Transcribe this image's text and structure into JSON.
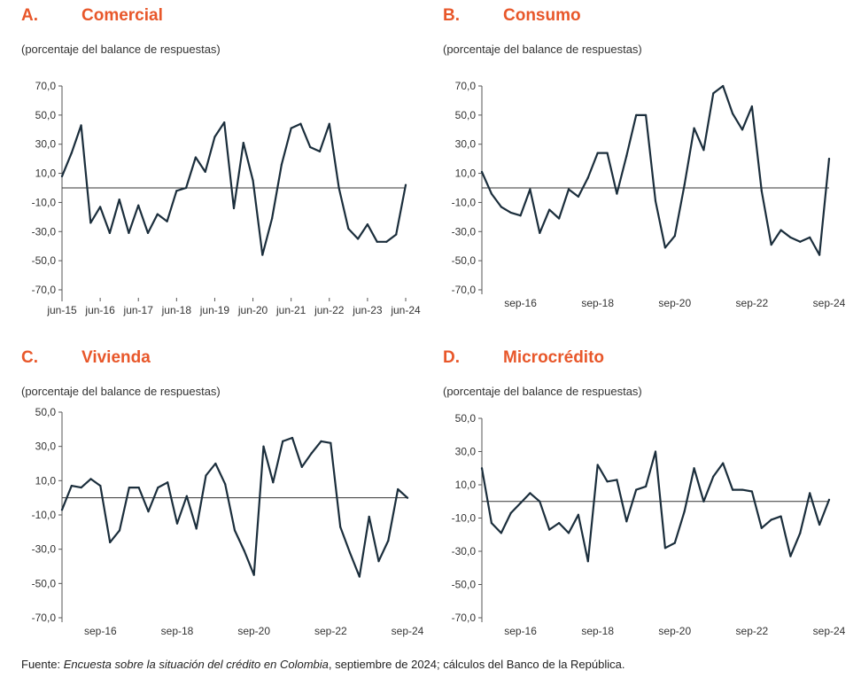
{
  "colors": {
    "title": "#e8572a",
    "line": "#1b2e3c",
    "axis": "#555555"
  },
  "source": {
    "prefix": "Fuente: ",
    "italic": "Encuesta sobre la situación del crédito en Colombia",
    "suffix": ", septiembre de 2024; cálculos del Banco de la República."
  },
  "chart_data": [
    {
      "id": "A",
      "letter": "A.",
      "title": "Comercial",
      "subtitle": "(porcentaje del balance de respuestas)",
      "type": "line",
      "ylim": [
        -70,
        70
      ],
      "yticks": [
        70,
        50,
        30,
        10,
        -10,
        -30,
        -50,
        -70
      ],
      "ytick_labels": [
        "70,0",
        "50,0",
        "30,0",
        "10,0",
        "-10,0",
        "-30,0",
        "-50,0",
        "-70,0"
      ],
      "xtick_labels": [
        "jun-15",
        "jun-16",
        "jun-17",
        "jun-18",
        "jun-19",
        "jun-20",
        "jun-21",
        "jun-22",
        "jun-23",
        "jun-24"
      ],
      "xtick_positions": [
        0,
        4,
        8,
        12,
        16,
        20,
        24,
        28,
        32,
        36
      ],
      "values": [
        8,
        24,
        43,
        -24,
        -13,
        -31,
        -8,
        -31,
        -12,
        -31,
        -18,
        -23,
        -2,
        0,
        21,
        11,
        35,
        45,
        -14,
        31,
        5,
        -46,
        -21,
        16,
        41,
        44,
        28,
        25,
        44,
        0,
        -28,
        -35,
        -25,
        -37,
        -37,
        -32,
        2
      ]
    },
    {
      "id": "B",
      "letter": "B.",
      "title": "Consumo",
      "subtitle": "(porcentaje del balance de respuestas)",
      "type": "line",
      "ylim": [
        -70,
        70
      ],
      "yticks": [
        70,
        50,
        30,
        10,
        -10,
        -30,
        -50,
        -70
      ],
      "ytick_labels": [
        "70,0",
        "50,0",
        "30,0",
        "10,0",
        "-10,0",
        "-30,0",
        "-50,0",
        "-70,0"
      ],
      "xtick_labels": [
        "sep-16",
        "sep-18",
        "sep-20",
        "sep-22",
        "sep-24"
      ],
      "xtick_positions": [
        4,
        12,
        20,
        28,
        36
      ],
      "values": [
        11,
        -4,
        -13,
        -17,
        -19,
        -1,
        -31,
        -15,
        -21,
        -1,
        -6,
        7,
        24,
        24,
        -4,
        22,
        50,
        50,
        -9,
        -41,
        -33,
        2,
        41,
        26,
        65,
        70,
        51,
        40,
        56,
        -2,
        -39,
        -29,
        -34,
        -37,
        -34,
        -46,
        20
      ]
    },
    {
      "id": "C",
      "letter": "C.",
      "title": "Vivienda",
      "subtitle": "(porcentaje del balance de respuestas)",
      "type": "line",
      "ylim": [
        -70,
        50
      ],
      "yticks": [
        50,
        30,
        10,
        -10,
        -30,
        -50,
        -70
      ],
      "ytick_labels": [
        "50,0",
        "30,0",
        "10,0",
        "-10,0",
        "-30,0",
        "-50,0",
        "-70,0"
      ],
      "xtick_labels": [
        "sep-16",
        "sep-18",
        "sep-20",
        "sep-22",
        "sep-24"
      ],
      "xtick_positions": [
        4,
        12,
        20,
        28,
        36
      ],
      "values": [
        -7,
        7,
        6,
        11,
        7,
        -26,
        -19,
        6,
        6,
        -8,
        6,
        9,
        -15,
        1,
        -18,
        13,
        20,
        8,
        -19,
        -31,
        -45,
        30,
        9,
        33,
        35,
        18,
        26,
        33,
        32,
        -17,
        -32,
        -46,
        -11,
        -37,
        -25,
        5,
        0
      ]
    },
    {
      "id": "D",
      "letter": "D.",
      "title": "Microcrédito",
      "subtitle": "(porcentaje del balance de respuestas)",
      "type": "line",
      "ylim": [
        -70,
        50
      ],
      "yticks": [
        50,
        30,
        10,
        -10,
        -30,
        -50,
        -70
      ],
      "ytick_labels": [
        "50,0",
        "30,0",
        "10,0",
        "-10,0",
        "-30,0",
        "-50,0",
        "-70,0"
      ],
      "xtick_labels": [
        "sep-16",
        "sep-18",
        "sep-20",
        "sep-22",
        "sep-24"
      ],
      "xtick_positions": [
        4,
        12,
        20,
        28,
        36
      ],
      "values": [
        20,
        -13,
        -19,
        -7,
        -1,
        5,
        0,
        -17,
        -13,
        -19,
        -8,
        -36,
        22,
        12,
        13,
        -12,
        7,
        9,
        30,
        -28,
        -25,
        -6,
        20,
        0,
        15,
        23,
        7,
        7,
        6,
        -16,
        -11,
        -9,
        -33,
        -19,
        5,
        -14,
        1
      ]
    }
  ]
}
